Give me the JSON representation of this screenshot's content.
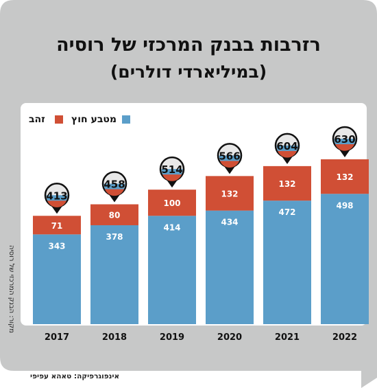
{
  "chart_data": {
    "type": "bar",
    "stacked": true,
    "title": "רזרבות בבנק המרכזי של רוסיה",
    "subtitle": "(במיליארדי דולרים)",
    "categories": [
      "2017",
      "2018",
      "2019",
      "2020",
      "2021",
      "2022"
    ],
    "series": [
      {
        "name": "מטבע חוץ",
        "values": [
          343,
          378,
          414,
          434,
          472,
          498
        ],
        "color": "#5b9ec9"
      },
      {
        "name": "זהב",
        "values": [
          71,
          80,
          100,
          132,
          132,
          132
        ],
        "color": "#d04f35"
      }
    ],
    "totals": [
      413,
      458,
      514,
      566,
      604,
      630
    ],
    "ylim": [
      0,
      700
    ],
    "grid": false,
    "legend_position": "top-right",
    "source": "מקור: הבנק המרכזי של רוסיה",
    "credit": "אינפוגרפיקה: טאהא עפיפי"
  },
  "colors": {
    "background_frame": "#c7c8c8",
    "plot_background": "#ffffff",
    "foreign_currency": "#5b9ec9",
    "gold": "#d04f35",
    "pin_fill": "#e8e8e8",
    "pin_stroke": "#111111"
  }
}
